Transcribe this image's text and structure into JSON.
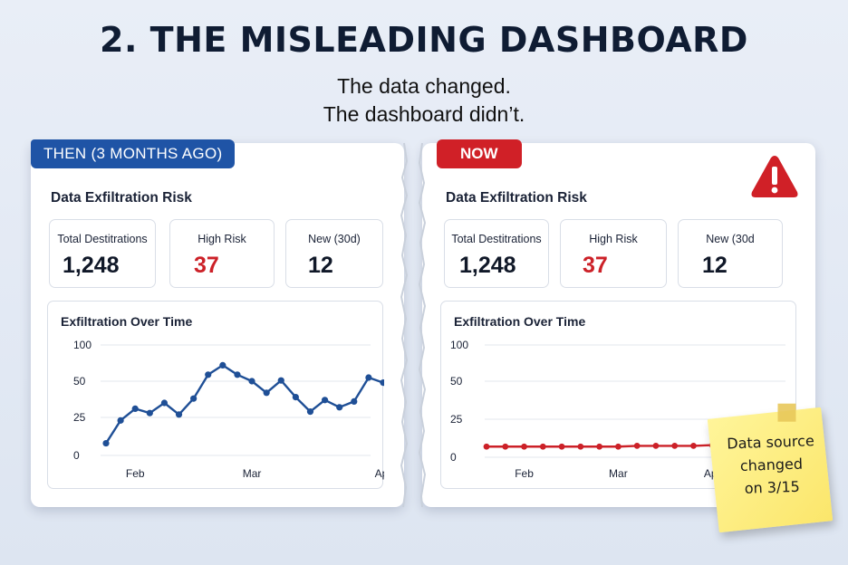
{
  "header": {
    "title": "2. THE MISLEADING DASHBOARD",
    "subtitle_line1": "The data changed.",
    "subtitle_line2": "The dashboard didn’t."
  },
  "colors": {
    "then_badge": "#1f54a6",
    "now_badge": "#d02027",
    "then_line": "#1f4f96",
    "now_line": "#cc2128",
    "high_risk_value": "#cc2128",
    "sticky_note": "#fbe66b"
  },
  "then_panel": {
    "badge": "THEN (3 MONTHS AGO)",
    "section_title": "Data Exfiltration Risk",
    "kpis": [
      {
        "label": "Total Destitrations",
        "value": "1,248"
      },
      {
        "label": "High Risk",
        "value": "37"
      },
      {
        "label": "New (30d)",
        "value": "12"
      }
    ],
    "chart_title": "Exfiltration Over Time"
  },
  "now_panel": {
    "badge": "NOW",
    "warning_icon": "warning-triangle-icon",
    "section_title": "Data Exfiltration Risk",
    "kpis": [
      {
        "label": "Total Destitrations",
        "value": "1,248"
      },
      {
        "label": "High Risk",
        "value": "37"
      },
      {
        "label": "New (30d",
        "value": "12"
      }
    ],
    "chart_title": "Exfiltration Over Time"
  },
  "sticky_note": {
    "line1": "Data source",
    "line2": "changed",
    "line3": "on 3/15"
  },
  "chart_data": [
    {
      "type": "line",
      "title": "Exfiltration Over Time",
      "y_tick_labels": [
        "100",
        "50",
        "25",
        "0"
      ],
      "x_tick_labels": [
        "Feb",
        "Mar",
        "Apr"
      ],
      "x_tick_index": [
        2,
        10,
        19
      ],
      "grid": true,
      "series": [
        {
          "values": [
            8,
            23,
            31,
            28,
            35,
            27,
            38,
            59,
            72,
            59,
            50,
            42,
            51,
            39,
            29,
            37,
            32,
            36,
            55,
            49
          ]
        }
      ]
    },
    {
      "type": "line",
      "title": "Exfiltration Over Time",
      "y_tick_labels": [
        "100",
        "50",
        "25",
        "0"
      ],
      "x_tick_labels": [
        "Feb",
        "Mar",
        "Apr"
      ],
      "x_tick_index": [
        2,
        7,
        12
      ],
      "grid": true,
      "series": [
        {
          "values": [
            7,
            7,
            7,
            7,
            7,
            7,
            7,
            7,
            7.5,
            7.5,
            7.5,
            7.5,
            8,
            8
          ]
        }
      ]
    }
  ]
}
